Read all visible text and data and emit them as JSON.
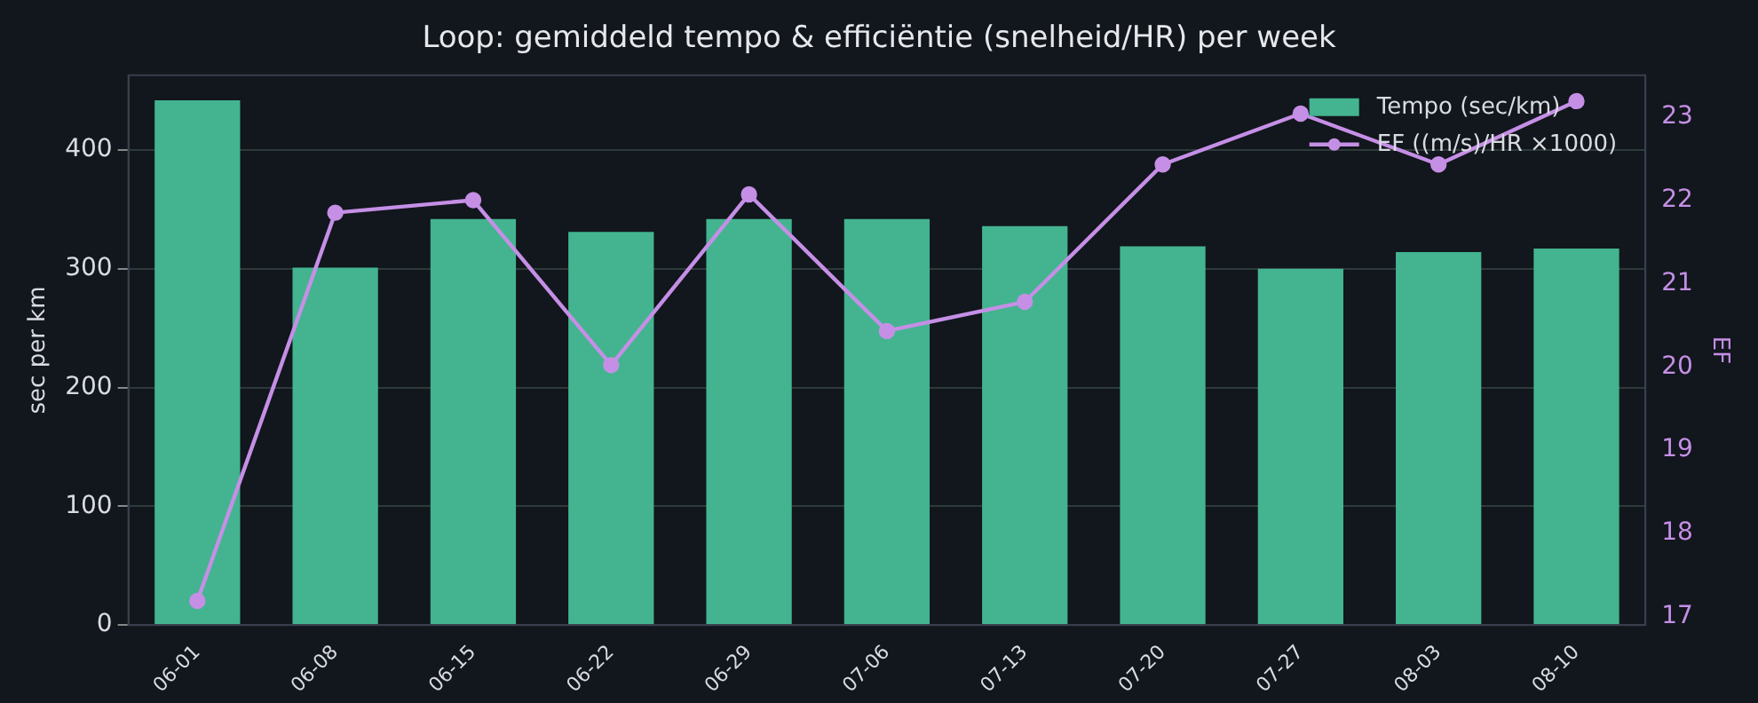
{
  "chart_data": {
    "type": "bar",
    "title": "Loop: gemiddeld tempo & efficiëntie (snelheid/HR) per week",
    "ylabel": "sec per km",
    "y2label": "EF",
    "categories": [
      "06-01",
      "06-08",
      "06-15",
      "06-22",
      "06-29",
      "07-06",
      "07-13",
      "07-20",
      "07-27",
      "08-03",
      "08-10"
    ],
    "series": [
      {
        "name": "Tempo (sec/km)",
        "color": "#43b48f",
        "values": [
          442,
          301,
          342,
          331,
          342,
          342,
          336,
          319,
          300,
          314,
          317
        ]
      },
      {
        "name": "EF ((m/s)/HR ×1000)",
        "type": "line",
        "axis": "y2",
        "color": "#c58fe6",
        "values": [
          17.19,
          21.85,
          22.0,
          20.02,
          22.07,
          20.43,
          20.78,
          22.43,
          23.04,
          22.43,
          23.19
        ]
      }
    ],
    "ylim": [
      0,
      463
    ],
    "yticks": [
      0,
      100,
      200,
      300,
      400
    ],
    "y2lim": [
      16.9,
      23.5
    ],
    "y2ticks": [
      17,
      18,
      19,
      20,
      21,
      22,
      23
    ],
    "grid": "y",
    "legend": "top right",
    "marker": "circle"
  }
}
